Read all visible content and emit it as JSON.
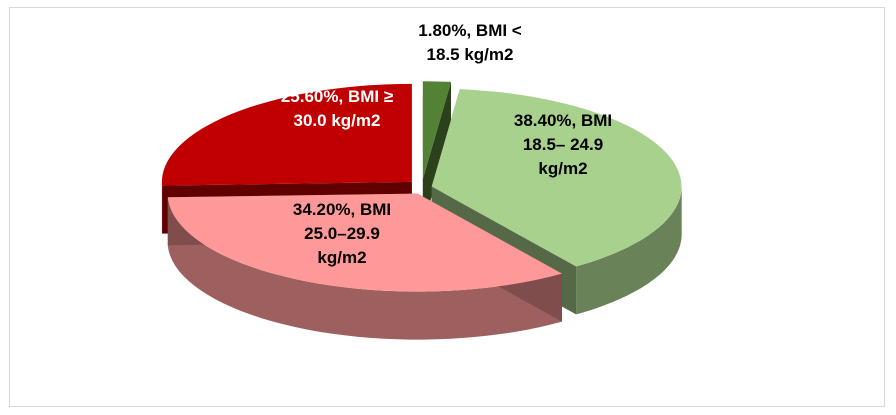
{
  "chart_data": {
    "type": "pie",
    "title": "",
    "slices": [
      {
        "label_lines": [
          "1.80%, BMI <",
          "18.5  kg/m2"
        ],
        "value": 1.8,
        "color": "#548235",
        "label_color": "#000000"
      },
      {
        "label_lines": [
          "38.40%, BMI",
          "18.5– 24.9",
          "kg/m2"
        ],
        "value": 38.4,
        "color": "#a9d18e",
        "label_color": "#000000"
      },
      {
        "label_lines": [
          "34.20%, BMI",
          "25.0–29.9",
          "kg/m2"
        ],
        "value": 34.2,
        "color": "#ff9999",
        "label_color": "#000000"
      },
      {
        "label_lines": [
          "25.60%, BMI ≥",
          "30.0  kg/m2"
        ],
        "value": 25.6,
        "color": "#c00000",
        "label_color": "#ffffff"
      }
    ],
    "legend": "none",
    "style": "3d-exploded"
  }
}
